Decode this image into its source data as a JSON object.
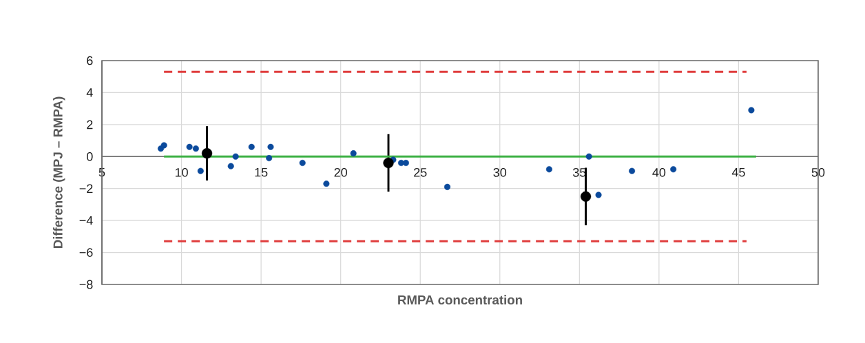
{
  "chart_data": {
    "type": "scatter",
    "xlabel": "RMPA concentration",
    "ylabel": "Difference (MPJ – RMPA)",
    "xlim": [
      5,
      50
    ],
    "ylim": [
      -8,
      6
    ],
    "xticks": [
      5,
      10,
      15,
      20,
      25,
      30,
      35,
      40,
      45,
      50
    ],
    "yticks": [
      {
        "value": -8,
        "label": "−8"
      },
      {
        "value": -6,
        "label": "−6"
      },
      {
        "value": -4,
        "label": "−4"
      },
      {
        "value": -2,
        "label": "−2"
      },
      0,
      2,
      4,
      6
    ],
    "grid": true,
    "series": [
      {
        "marker": "circle",
        "color": "#0b4a9c",
        "x": [
          8.7,
          8.9,
          10.5,
          10.9,
          11.2,
          13.1,
          13.4,
          14.4,
          15.5,
          15.6,
          17.6,
          19.1,
          20.8,
          23.3,
          23.8,
          24.1,
          26.7,
          33.1,
          35.6,
          36.2,
          38.3,
          40.9,
          45.8
        ],
        "values": [
          0.5,
          0.7,
          0.6,
          0.5,
          -0.9,
          -0.6,
          0.0,
          0.6,
          -0.1,
          0.6,
          -0.4,
          -1.7,
          0.2,
          -0.2,
          -0.4,
          -0.4,
          -1.9,
          -0.8,
          0.0,
          -2.4,
          -0.9,
          -0.8,
          2.9
        ]
      },
      {
        "marker": "circle",
        "color": "#000000",
        "x": [
          11.6,
          23.0,
          35.4
        ],
        "values": [
          0.2,
          -0.4,
          -2.5
        ],
        "errors": [
          1.7,
          1.8,
          1.8
        ]
      },
      {
        "type": "line",
        "marker": "none",
        "line_style": "solid",
        "color": "#3cb043",
        "x": [
          8.9,
          46.1
        ],
        "values": [
          0,
          0
        ]
      },
      {
        "type": "line",
        "marker": "none",
        "line_style": "dashed",
        "color": "#e03c3c",
        "x": [
          8.9,
          45.5
        ],
        "values": [
          5.3,
          5.3
        ]
      },
      {
        "type": "line",
        "marker": "none",
        "line_style": "dashed",
        "color": "#e03c3c",
        "x": [
          8.9,
          45.5
        ],
        "values": [
          -5.3,
          -5.3
        ]
      }
    ]
  }
}
